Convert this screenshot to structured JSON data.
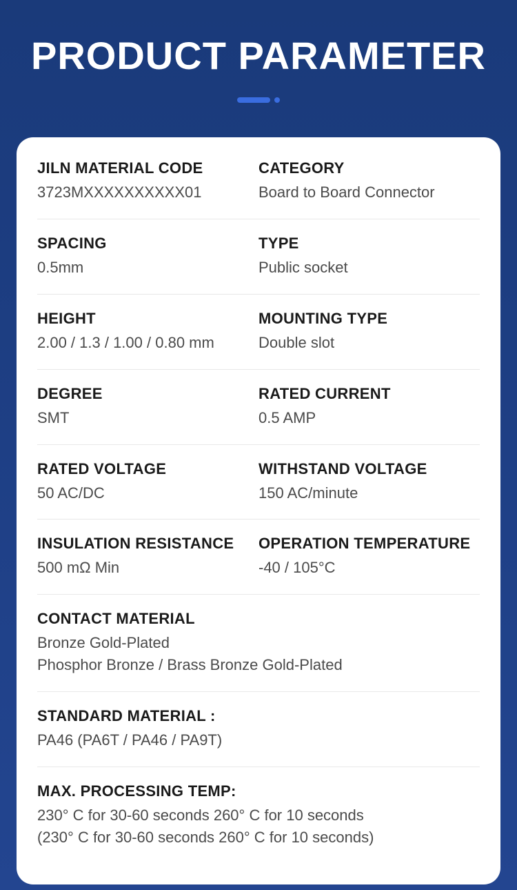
{
  "title": "PRODUCT PARAMETER",
  "colors": {
    "bg_top": "#1a3a7a",
    "bg_bottom": "#234590",
    "accent": "#3a6de0",
    "card_bg": "#ffffff",
    "label_color": "#1a1a1a",
    "value_color": "#4a4a4a",
    "divider": "#e8e8e8"
  },
  "rows": [
    {
      "left": {
        "label": "JILN MATERIAL CODE",
        "value": "3723MXXXXXXXXXX01"
      },
      "right": {
        "label": "CATEGORY",
        "value": "Board to Board Connector"
      }
    },
    {
      "left": {
        "label": "SPACING",
        "value": "0.5mm"
      },
      "right": {
        "label": "TYPE",
        "value": "Public socket"
      }
    },
    {
      "left": {
        "label": "HEIGHT",
        "value": "2.00 / 1.3 / 1.00 / 0.80 mm"
      },
      "right": {
        "label": "MOUNTING TYPE",
        "value": "Double slot"
      }
    },
    {
      "left": {
        "label": "DEGREE",
        "value": "SMT"
      },
      "right": {
        "label": "RATED CURRENT",
        "value": "0.5 AMP"
      }
    },
    {
      "left": {
        "label": "RATED VOLTAGE",
        "value": "50 AC/DC"
      },
      "right": {
        "label": "WITHSTAND VOLTAGE",
        "value": "150 AC/minute"
      }
    },
    {
      "left": {
        "label": "INSULATION RESISTANCE",
        "value": "500 mΩ Min"
      },
      "right": {
        "label": "OPERATION TEMPERATURE",
        "value": "-40 / 105°C"
      }
    },
    {
      "full": {
        "label": "CONTACT MATERIAL",
        "value": "Bronze Gold-Plated\nPhosphor Bronze / Brass Bronze Gold-Plated"
      }
    },
    {
      "full": {
        "label": "STANDARD MATERIAL :",
        "value": "PA46 (PA6T / PA46 / PA9T)"
      }
    },
    {
      "full": {
        "label": "MAX. PROCESSING TEMP:",
        "value": "230° C for 30-60 seconds    260° C for 10 seconds\n(230° C for 30-60 seconds    260° C for 10 seconds)"
      }
    }
  ]
}
